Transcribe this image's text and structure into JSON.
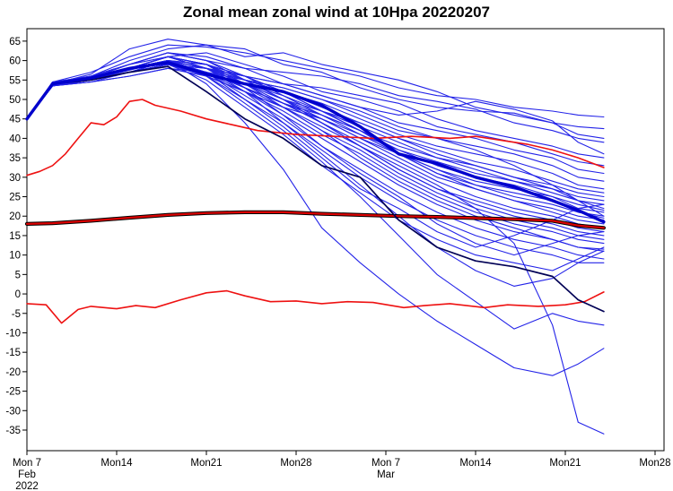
{
  "chart_data": {
    "type": "line",
    "title": "Zonal mean zonal wind at 10Hpa 20220207",
    "xlabel": "",
    "ylabel": "",
    "ylim": [
      -40.3,
      68.2
    ],
    "xlim_days": [
      0,
      49.7
    ],
    "grid": "off",
    "legend": "none",
    "y_ticks": [
      65,
      60,
      55,
      50,
      45,
      40,
      35,
      30,
      25,
      20,
      15,
      10,
      5,
      0,
      -5,
      -10,
      -15,
      -20,
      -25,
      -30,
      -35
    ],
    "x_ticks": [
      {
        "day": 0,
        "label": "Mon 7",
        "sub1": "Feb",
        "sub2": "2022"
      },
      {
        "day": 7,
        "label": "Mon14",
        "sub1": "",
        "sub2": ""
      },
      {
        "day": 14,
        "label": "Mon21",
        "sub1": "",
        "sub2": ""
      },
      {
        "day": 21,
        "label": "Mon28",
        "sub1": "",
        "sub2": ""
      },
      {
        "day": 28,
        "label": "Mon 7",
        "sub1": "Mar",
        "sub2": ""
      },
      {
        "day": 35,
        "label": "Mon14",
        "sub1": "",
        "sub2": ""
      },
      {
        "day": 42,
        "label": "Mon21",
        "sub1": "",
        "sub2": ""
      },
      {
        "day": 49,
        "label": "Mon28",
        "sub1": "",
        "sub2": ""
      }
    ],
    "colors": {
      "member": "#2323e8",
      "mean": "#0000cc",
      "control": "#000055",
      "climate_edge": "#000000",
      "climate_red": "#dd0000",
      "percentile": "#ee1111"
    },
    "grid_days": [
      0,
      2,
      5,
      8,
      11,
      14,
      17,
      20,
      23,
      26,
      29,
      32,
      35,
      38,
      41,
      43,
      45
    ],
    "series": [
      {
        "name": "ensemble_mean",
        "role": "mean",
        "values": [
          45,
          54,
          55.5,
          58,
          59.5,
          56.5,
          54,
          52,
          48.5,
          43,
          36,
          33.5,
          30,
          27.5,
          24,
          21.5,
          18.5
        ]
      },
      {
        "name": "control",
        "role": "control",
        "values": [
          45,
          54,
          55,
          57,
          58.5,
          52,
          45,
          40,
          33,
          30,
          19,
          12,
          8.5,
          7,
          4.5,
          -1.5,
          -4.5
        ]
      },
      {
        "name": "climatological_mean",
        "role": "climate",
        "values": [
          18,
          18.2,
          18.8,
          19.6,
          20.3,
          20.8,
          21,
          21,
          20.6,
          20.3,
          20,
          19.8,
          19.5,
          19.2,
          18.8,
          17.6,
          17
        ]
      }
    ],
    "upper_bound": {
      "name": "climate_upper",
      "days": [
        0,
        1,
        2,
        3,
        4,
        5,
        6,
        7,
        8,
        9,
        10,
        12,
        14,
        16,
        18,
        21,
        24,
        27,
        30,
        33,
        35,
        37,
        39,
        41,
        43,
        45
      ],
      "values": [
        30.5,
        31.5,
        33,
        36,
        40,
        44,
        43.5,
        45.5,
        49.5,
        50,
        48.5,
        47,
        45,
        43.5,
        42,
        41,
        40.5,
        40,
        40.5,
        40,
        40.5,
        39.5,
        38.5,
        37,
        35,
        32.5
      ]
    },
    "lower_bound": {
      "name": "climate_lower",
      "days": [
        0,
        1.5,
        2.7,
        4,
        5,
        7,
        8.5,
        10,
        12,
        14,
        15.6,
        17,
        19,
        21,
        23,
        25,
        27,
        29.4,
        31,
        33,
        35.7,
        37.5,
        39.9,
        42,
        43.5,
        45
      ],
      "values": [
        -2.5,
        -2.8,
        -7.5,
        -4,
        -3.2,
        -3.8,
        -3,
        -3.5,
        -1.5,
        0.3,
        0.8,
        -0.5,
        -2,
        -1.8,
        -2.5,
        -2,
        -2.2,
        -3.5,
        -3,
        -2.5,
        -3.5,
        -2.8,
        -3.2,
        -2.8,
        -2,
        0.5
      ]
    },
    "members": [
      [
        45,
        54.5,
        57,
        61,
        64,
        63.5,
        62,
        60,
        58,
        56,
        53,
        51,
        50,
        48,
        47,
        46,
        45.5
      ],
      [
        45,
        54,
        56.5,
        63,
        65.5,
        64,
        61,
        62,
        59,
        57,
        55,
        52,
        48,
        46,
        44,
        43,
        42.5
      ],
      [
        45,
        54.5,
        56,
        60,
        63,
        64,
        63,
        59,
        57,
        53,
        50,
        48,
        47,
        46.5,
        44,
        41,
        40
      ],
      [
        45,
        54,
        55.5,
        59,
        62,
        60,
        58,
        57,
        56,
        54,
        51,
        49.5,
        47.5,
        44,
        42,
        40,
        39
      ],
      [
        45,
        54,
        56,
        58,
        61,
        59,
        56,
        54,
        51,
        48,
        46,
        47,
        49.5,
        47.5,
        44.5,
        39,
        36
      ],
      [
        45,
        53.5,
        55,
        57.5,
        60,
        58,
        56,
        54,
        53,
        51,
        49,
        45,
        42,
        40,
        38,
        36,
        35
      ],
      [
        45,
        54,
        55,
        58,
        61,
        62,
        59,
        56,
        52,
        50,
        47,
        43,
        41,
        39,
        36,
        34,
        33
      ],
      [
        45,
        54,
        56,
        59,
        62,
        61,
        58,
        54,
        51,
        48,
        44,
        42,
        40,
        37,
        35,
        32,
        31
      ],
      [
        45,
        53.5,
        54.5,
        56,
        58,
        57,
        55,
        53,
        50,
        46,
        42,
        40,
        38,
        36,
        33,
        30,
        29
      ],
      [
        45,
        54,
        55,
        57,
        59,
        58,
        56,
        52,
        49,
        45,
        41,
        38,
        36,
        34,
        31,
        28,
        27
      ],
      [
        45,
        54.5,
        56,
        58,
        60,
        59,
        54,
        50,
        47,
        44,
        40,
        37,
        34,
        32,
        29,
        27,
        26
      ],
      [
        45,
        54,
        55.5,
        58,
        61,
        58,
        53,
        49,
        46,
        42,
        38,
        35,
        33,
        30,
        28,
        26,
        25
      ],
      [
        45,
        53.5,
        55,
        57,
        59,
        56,
        52,
        48,
        45,
        41,
        37,
        34,
        31,
        29,
        27,
        25,
        24
      ],
      [
        45,
        54,
        55,
        58,
        60,
        57,
        54,
        51,
        47,
        43,
        39,
        35,
        32,
        29,
        26,
        24,
        23
      ],
      [
        45,
        54,
        56,
        59,
        61,
        59,
        55,
        52,
        48,
        44,
        40,
        36,
        33,
        30,
        27,
        24,
        22
      ],
      [
        45,
        53.5,
        54.5,
        57,
        59,
        57,
        53,
        49,
        45,
        40,
        36,
        32,
        29,
        27,
        25,
        23,
        21.5
      ],
      [
        45,
        54,
        55,
        57,
        60,
        58,
        54,
        50,
        46,
        42,
        37,
        33,
        30,
        28,
        25,
        22,
        21
      ],
      [
        45,
        54,
        55.5,
        58,
        61,
        59,
        56,
        51,
        46,
        41,
        36,
        31,
        28,
        26,
        24,
        21,
        20
      ],
      [
        45,
        53.5,
        55,
        57,
        59,
        58,
        55,
        52,
        47,
        42,
        36,
        32,
        28,
        25,
        23,
        21,
        19.5
      ],
      [
        45,
        54,
        55,
        58,
        60,
        59,
        55,
        50,
        45,
        40,
        35,
        30,
        27,
        24,
        22,
        20,
        19
      ],
      [
        45,
        54,
        56,
        59,
        62,
        60,
        56,
        52,
        47,
        42,
        36,
        31,
        27,
        24,
        21,
        19,
        18
      ],
      [
        45,
        54,
        55,
        57,
        59,
        57,
        53,
        49,
        44,
        39,
        34,
        29,
        25,
        22,
        20,
        18,
        17
      ],
      [
        45,
        53.5,
        54.5,
        56,
        58,
        56,
        52,
        48,
        43,
        38,
        32,
        27,
        24,
        21,
        19,
        17,
        16
      ],
      [
        45,
        54,
        55,
        58,
        61,
        58,
        54,
        49,
        44,
        38,
        32,
        27,
        23,
        20,
        18,
        16,
        15
      ],
      [
        45,
        54,
        55.5,
        58,
        60,
        58,
        53,
        48,
        42,
        37,
        31,
        26,
        22,
        19,
        17,
        15,
        14
      ],
      [
        45,
        53.5,
        55,
        57,
        60,
        57,
        52,
        47,
        41,
        36,
        30,
        25,
        21,
        18,
        16,
        14,
        13
      ],
      [
        45,
        54,
        55,
        57,
        59,
        56,
        52,
        46,
        40,
        34,
        28,
        23,
        19,
        16,
        14,
        12,
        11.5
      ],
      [
        45,
        54,
        56,
        58,
        61,
        59,
        54,
        48,
        42,
        35,
        29,
        24,
        20,
        17,
        14,
        12,
        11
      ],
      [
        45,
        53.5,
        55,
        57,
        59,
        57,
        51,
        45,
        38,
        32,
        26,
        21,
        17,
        14,
        12,
        10,
        9
      ],
      [
        45,
        54,
        55,
        58,
        60,
        56,
        50,
        44,
        37,
        30,
        24,
        19,
        15,
        12,
        10,
        8,
        8
      ],
      [
        45,
        54,
        55,
        57,
        59,
        55,
        48,
        41,
        33,
        26,
        19,
        14,
        10,
        8,
        6,
        9,
        12
      ],
      [
        45,
        54,
        55.5,
        58,
        60,
        56,
        49,
        42,
        34,
        25,
        15,
        5,
        -2,
        -9,
        -5,
        -7,
        -8
      ],
      [
        45,
        54,
        55,
        58,
        60,
        54,
        44,
        32,
        17,
        8,
        0,
        -7,
        -13,
        -19,
        -21,
        -18,
        -14
      ],
      [
        45,
        54,
        56,
        59,
        62,
        60,
        55,
        50,
        44,
        38,
        33,
        28,
        22,
        13,
        -8,
        -33,
        -36
      ],
      [
        45,
        54,
        55,
        57,
        60,
        58,
        52,
        44,
        36,
        28,
        20,
        12,
        6,
        2,
        4,
        8,
        11
      ],
      [
        45,
        54,
        55.5,
        58,
        61,
        59,
        53,
        46,
        38,
        31,
        25,
        18,
        13,
        10,
        13,
        15,
        16
      ],
      [
        45,
        53.5,
        55,
        57,
        59,
        57,
        50,
        43,
        35,
        27,
        22,
        16,
        12,
        15,
        19,
        22,
        23
      ],
      [
        45,
        54,
        55,
        58,
        60,
        58,
        55,
        53,
        50,
        47,
        43,
        40,
        37,
        33,
        28,
        24,
        20
      ]
    ]
  }
}
